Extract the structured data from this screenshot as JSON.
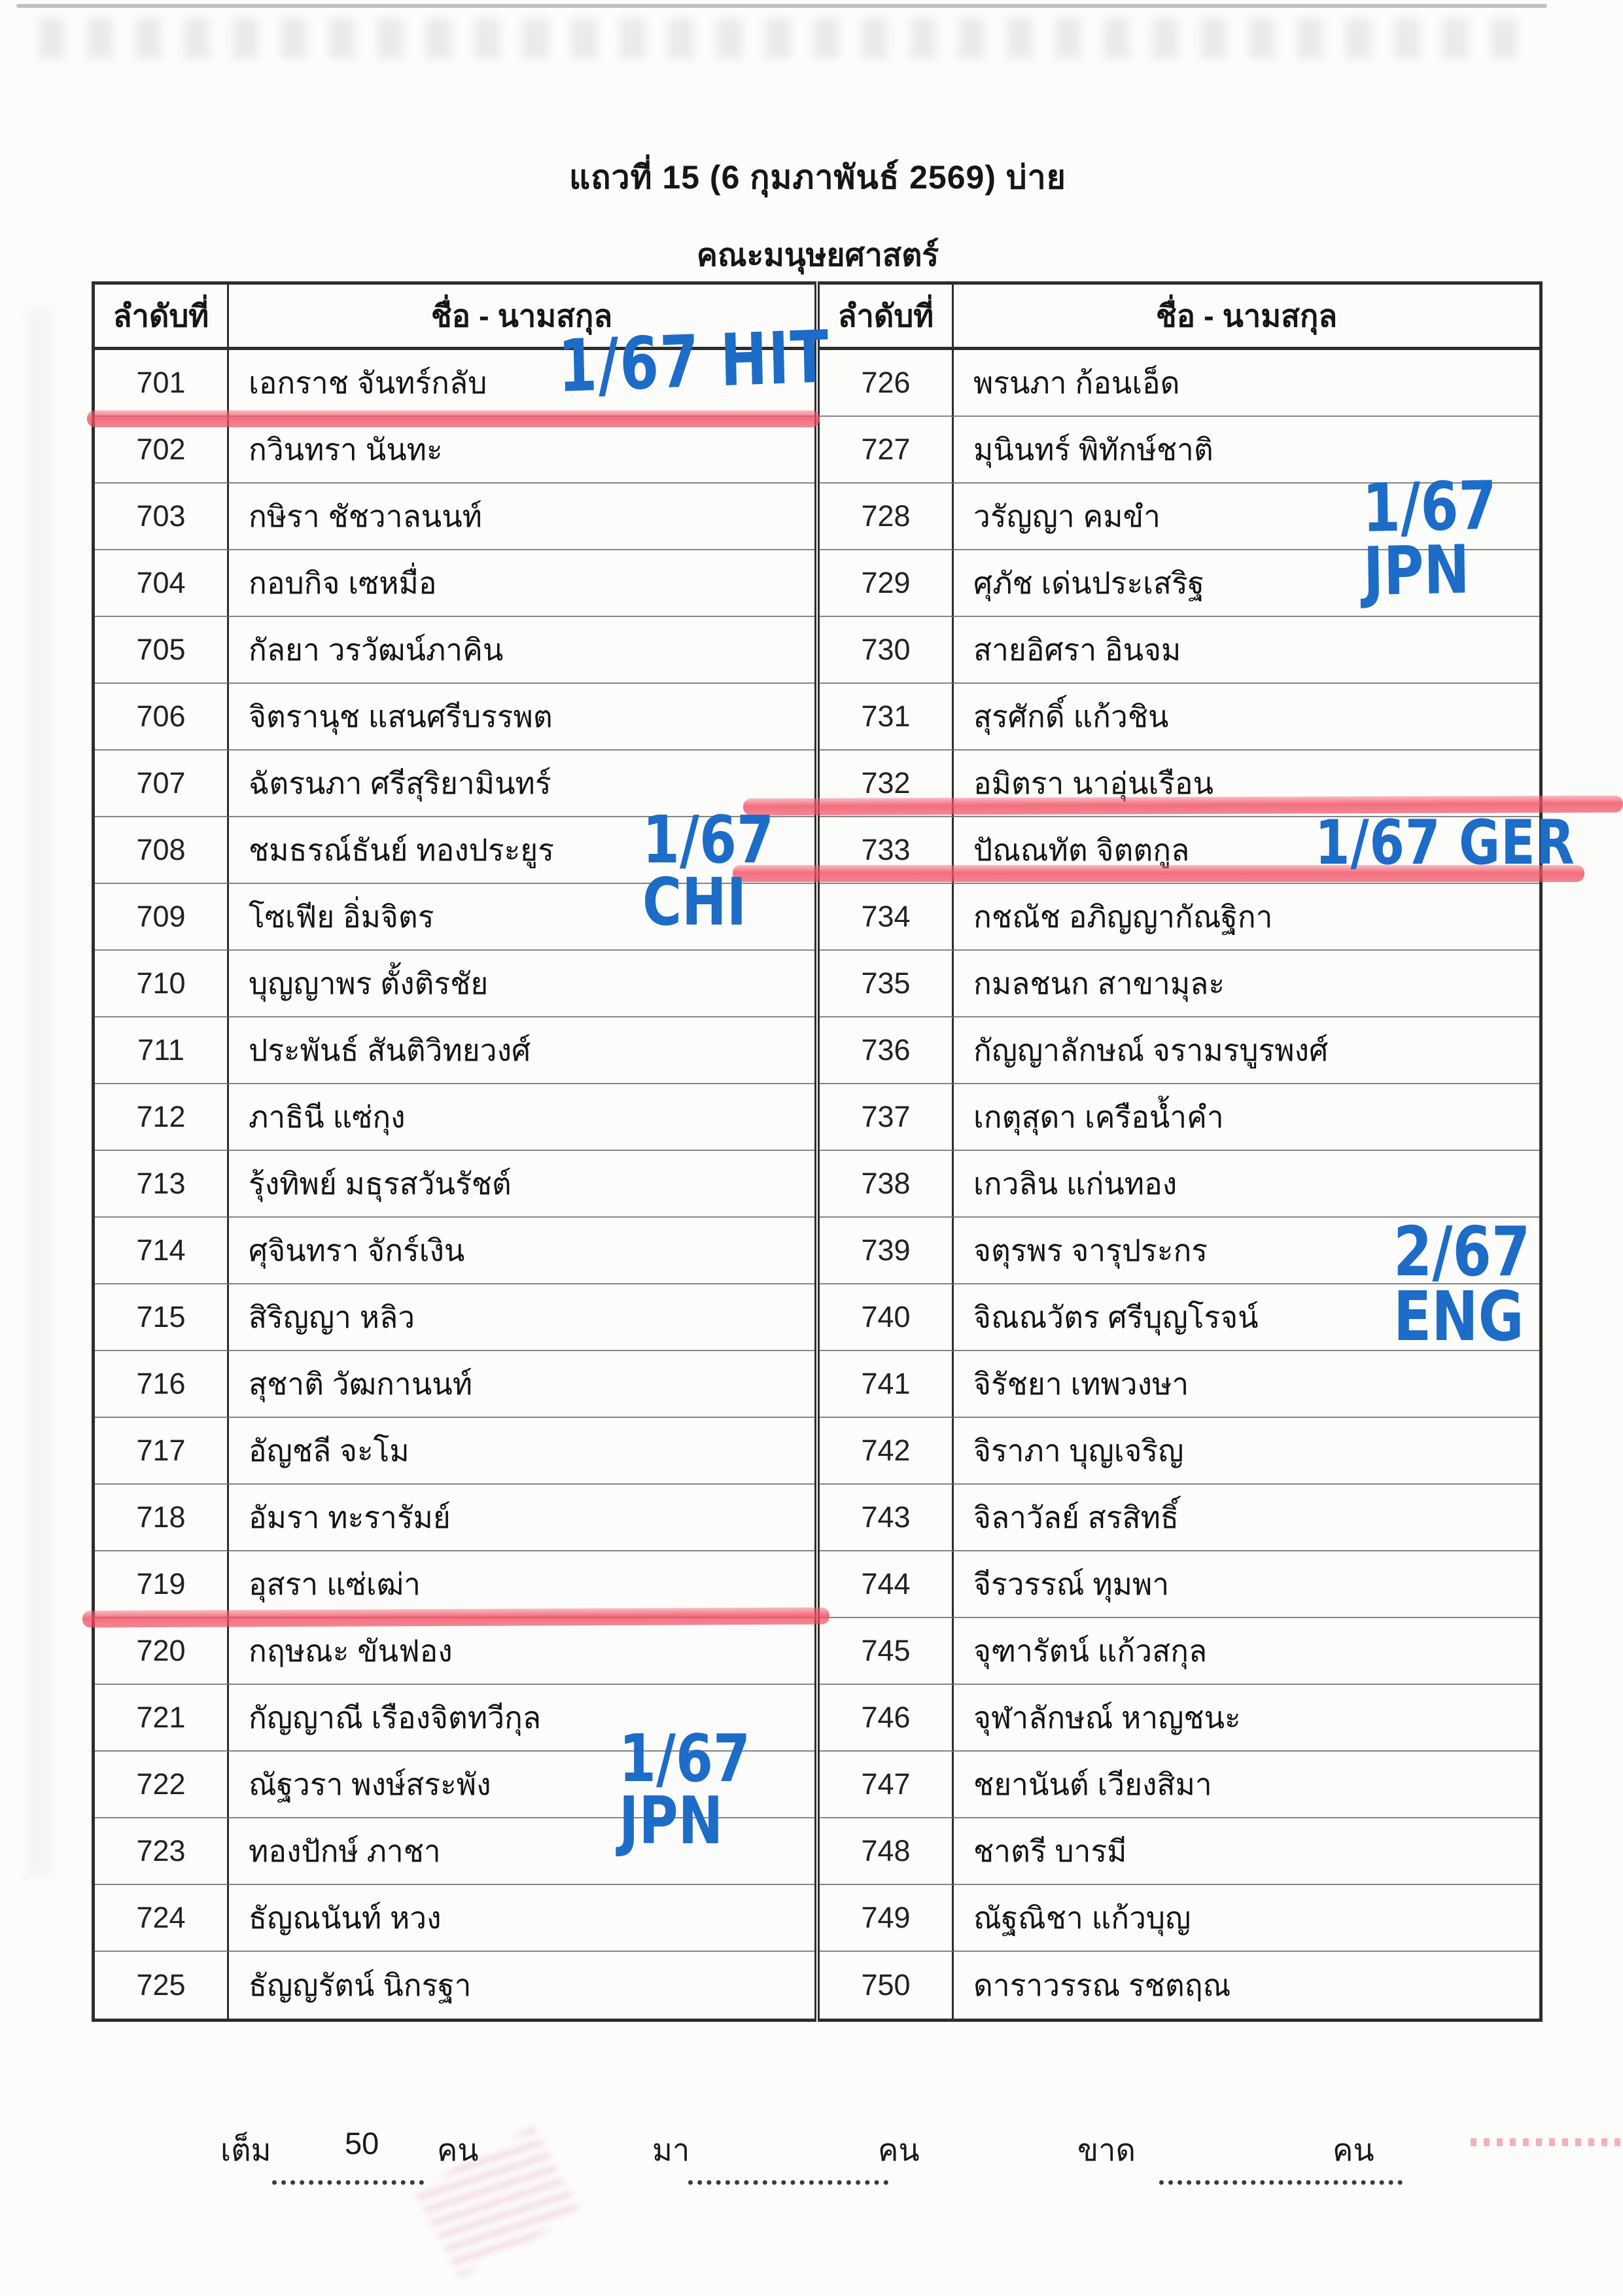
{
  "page": {
    "title": "แถวที่ 15 (6 กุมภาพันธ์ 2569) บ่าย",
    "subtitle": "คณะมนุษยศาสตร์"
  },
  "colors": {
    "marker_blue": "#1d6cc7",
    "marker_red": "#f25565",
    "table_border": "#2e2e2e"
  },
  "table": {
    "header_no": "ลำดับที่",
    "header_name": "ชื่อ - นามสกุล",
    "left_rows": [
      {
        "no": "701",
        "name": "เอกราช จันทร์กลับ"
      },
      {
        "no": "702",
        "name": "กวินทรา นันทะ"
      },
      {
        "no": "703",
        "name": "กษิรา ชัชวาลนนท์"
      },
      {
        "no": "704",
        "name": "กอบกิจ เซหมื่อ"
      },
      {
        "no": "705",
        "name": "กัลยา วรวัฒน์ภาคิน"
      },
      {
        "no": "706",
        "name": "จิตรานุช แสนศรีบรรพต"
      },
      {
        "no": "707",
        "name": "ฉัตรนภา ศรีสุริยามินทร์"
      },
      {
        "no": "708",
        "name": "ชมธรณ์ธันย์ ทองประยูร"
      },
      {
        "no": "709",
        "name": "โซเฟีย อิ่มจิตร"
      },
      {
        "no": "710",
        "name": "บุญญาพร ตั้งติรชัย"
      },
      {
        "no": "711",
        "name": "ประพันธ์ สันติวิทยวงศ์"
      },
      {
        "no": "712",
        "name": "ภาธินี แซ่กุง"
      },
      {
        "no": "713",
        "name": "รุ้งทิพย์ มธุรสวันรัชต์"
      },
      {
        "no": "714",
        "name": "ศุจินทรา จักร์เงิน"
      },
      {
        "no": "715",
        "name": "สิริญญา หลิว"
      },
      {
        "no": "716",
        "name": "สุชาติ วัฒกานนท์"
      },
      {
        "no": "717",
        "name": "อัญชลี จะโม"
      },
      {
        "no": "718",
        "name": "อัมรา ทะรารัมย์"
      },
      {
        "no": "719",
        "name": "อุสรา แซ่เฒ่า"
      },
      {
        "no": "720",
        "name": "กฤษณะ ขันฟอง"
      },
      {
        "no": "721",
        "name": "กัญญาณี เรืองจิตทวีกุล"
      },
      {
        "no": "722",
        "name": "ณัฐวรา พงษ์สระพัง"
      },
      {
        "no": "723",
        "name": "ทองปักษ์ ภาชา"
      },
      {
        "no": "724",
        "name": "ธัญณนันท์ หวง"
      },
      {
        "no": "725",
        "name": "ธัญญรัตน์ นิกรฐา"
      }
    ],
    "right_rows": [
      {
        "no": "726",
        "name": "พรนภา ก้อนเอ็ด"
      },
      {
        "no": "727",
        "name": "มุนินทร์ พิทักษ์ชาติ"
      },
      {
        "no": "728",
        "name": "วรัญญา คมขำ"
      },
      {
        "no": "729",
        "name": "ศุภัช เด่นประเสริฐ"
      },
      {
        "no": "730",
        "name": "สายอิศรา อินจม"
      },
      {
        "no": "731",
        "name": "สุรศักดิ์ แก้วชิน"
      },
      {
        "no": "732",
        "name": "อมิตรา นาอุ่นเรือน"
      },
      {
        "no": "733",
        "name": "ปัณณทัต จิตตกูล"
      },
      {
        "no": "734",
        "name": "กชณัช อภิญญากัณฐิกา"
      },
      {
        "no": "735",
        "name": "กมลชนก สาขามุละ"
      },
      {
        "no": "736",
        "name": "กัญญาลักษณ์ จรามรบูรพงศ์"
      },
      {
        "no": "737",
        "name": "เกตุสุดา เครือน้ำคำ"
      },
      {
        "no": "738",
        "name": "เกวลิน แก่นทอง"
      },
      {
        "no": "739",
        "name": "จตุรพร จารุประกร"
      },
      {
        "no": "740",
        "name": "จิณณวัตร ศรีบุญโรจน์"
      },
      {
        "no": "741",
        "name": "จิรัชยา เทพวงษา"
      },
      {
        "no": "742",
        "name": "จิราภา บุญเจริญ"
      },
      {
        "no": "743",
        "name": "จิลาวัลย์ สรสิทธิ์"
      },
      {
        "no": "744",
        "name": "จีรวรรณ์ ทุมพา"
      },
      {
        "no": "745",
        "name": "จุฑารัตน์ แก้วสกุล"
      },
      {
        "no": "746",
        "name": "จุฬาลักษณ์ หาญชนะ"
      },
      {
        "no": "747",
        "name": "ชยานันต์ เวียงสิมา"
      },
      {
        "no": "748",
        "name": "ชาตรี บารมี"
      },
      {
        "no": "749",
        "name": "ณัฐณิชา แก้วบุญ"
      },
      {
        "no": "750",
        "name": "ดาราวรรณ รชตฤณ"
      }
    ]
  },
  "annotations": {
    "row701_note": "1/67 HIT",
    "row708_note_line1": "1/67",
    "row708_note_line2": "CHI",
    "row722_note_line1": "1/67",
    "row722_note_line2": "JPN",
    "row728_note_line1": "1/67",
    "row728_note_line2": "JPN",
    "row733_note": "1/67 GER",
    "row739_note_line1": "2/67",
    "row739_note_line2": "ENG"
  },
  "footer": {
    "full_label": "เต็ม",
    "full_value": "50",
    "people_unit": "คน",
    "present_label": "มา",
    "absent_label": "ขาด"
  }
}
